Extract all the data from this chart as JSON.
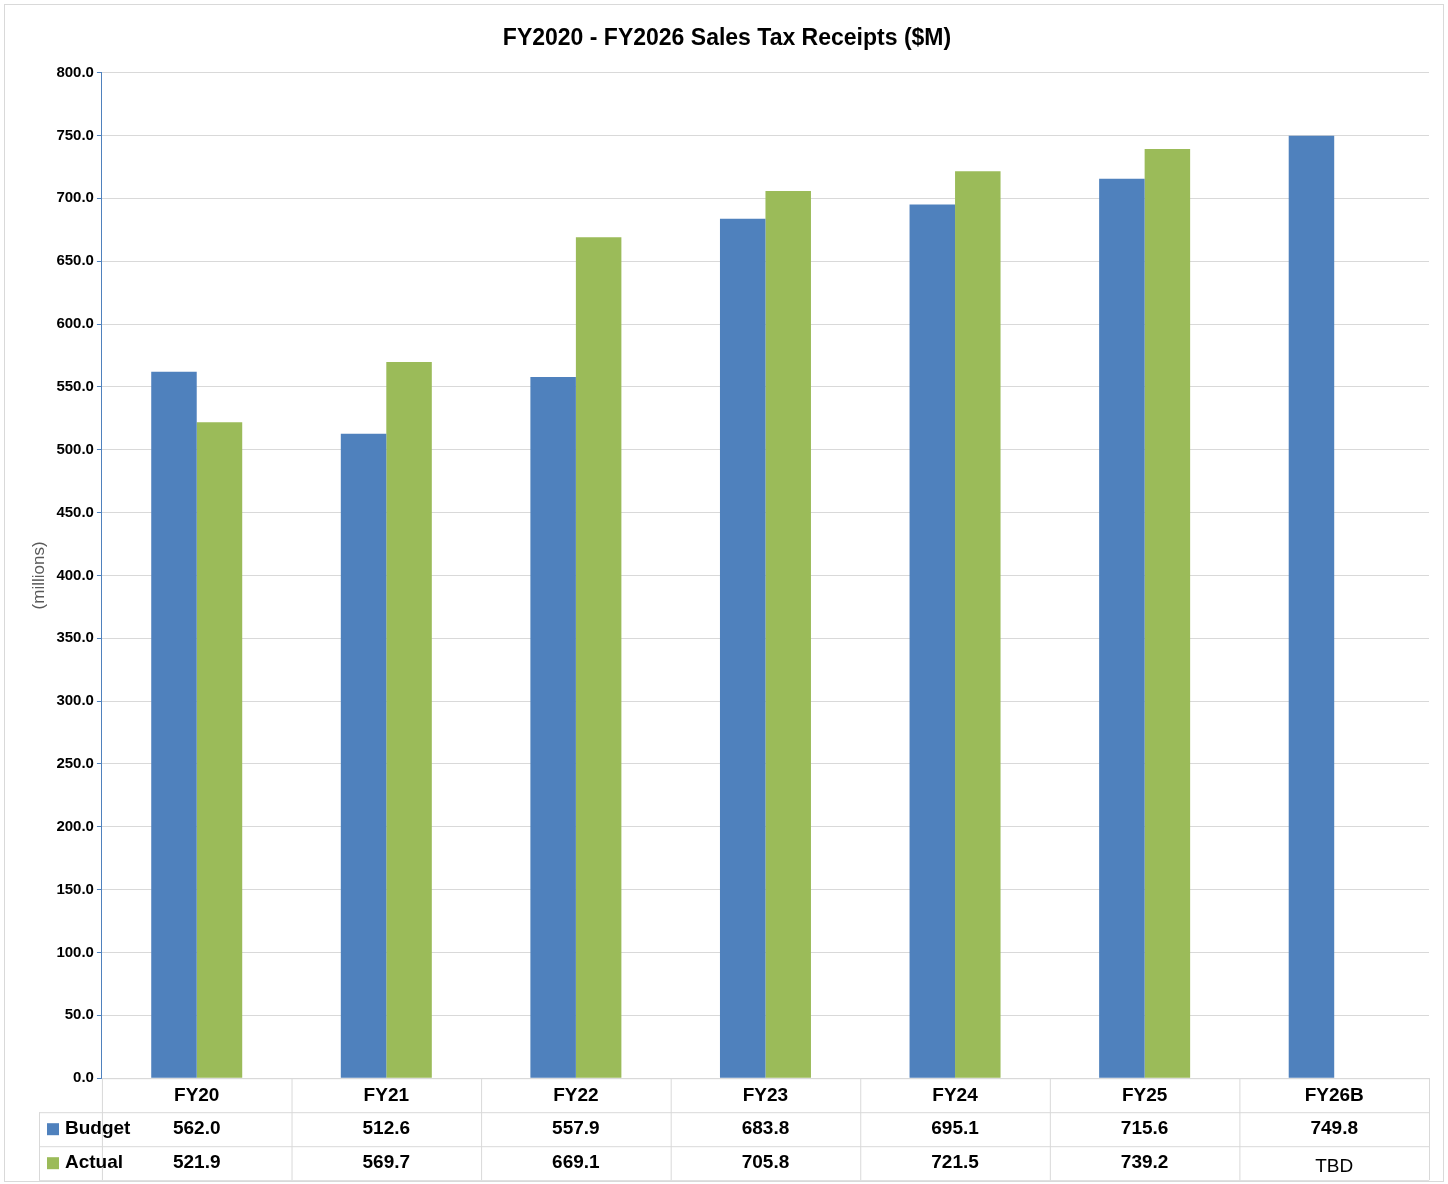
{
  "chart_data": {
    "type": "bar",
    "title": "FY2020 - FY2026 Sales Tax Receipts ($M)",
    "ylabel": "(millions)",
    "categories": [
      "FY20",
      "FY21",
      "FY22",
      "FY23",
      "FY24",
      "FY25",
      "FY26B"
    ],
    "series": [
      {
        "name": "Budget",
        "color": "#4f81bd",
        "values": [
          562.0,
          512.6,
          557.9,
          683.8,
          695.1,
          715.6,
          749.8
        ],
        "value_labels": [
          "562.0",
          "512.6",
          "557.9",
          "683.8",
          "695.1",
          "715.6",
          "749.8"
        ]
      },
      {
        "name": "Actual",
        "color": "#9bbb59",
        "values": [
          521.9,
          569.7,
          669.1,
          705.8,
          721.5,
          739.2,
          null
        ],
        "value_labels": [
          "521.9",
          "569.7",
          "669.1",
          "705.8",
          "721.5",
          "739.2",
          "TBD"
        ]
      }
    ],
    "ylim": [
      0,
      800
    ],
    "yticks": [
      {
        "value": 0,
        "label": "0.0"
      },
      {
        "value": 50,
        "label": "50.0"
      },
      {
        "value": 100,
        "label": "100.0"
      },
      {
        "value": 150,
        "label": "150.0"
      },
      {
        "value": 200,
        "label": "200.0"
      },
      {
        "value": 250,
        "label": "250.0"
      },
      {
        "value": 300,
        "label": "300.0"
      },
      {
        "value": 350,
        "label": "350.0"
      },
      {
        "value": 400,
        "label": "400.0"
      },
      {
        "value": 450,
        "label": "450.0"
      },
      {
        "value": 500,
        "label": "500.0"
      },
      {
        "value": 550,
        "label": "550.0"
      },
      {
        "value": 600,
        "label": "600.0"
      },
      {
        "value": 650,
        "label": "650.0"
      },
      {
        "value": 700,
        "label": "700.0"
      },
      {
        "value": 750,
        "label": "750.0"
      },
      {
        "value": 800,
        "label": "800.0"
      }
    ],
    "grid": "y",
    "legend": "bottom"
  }
}
